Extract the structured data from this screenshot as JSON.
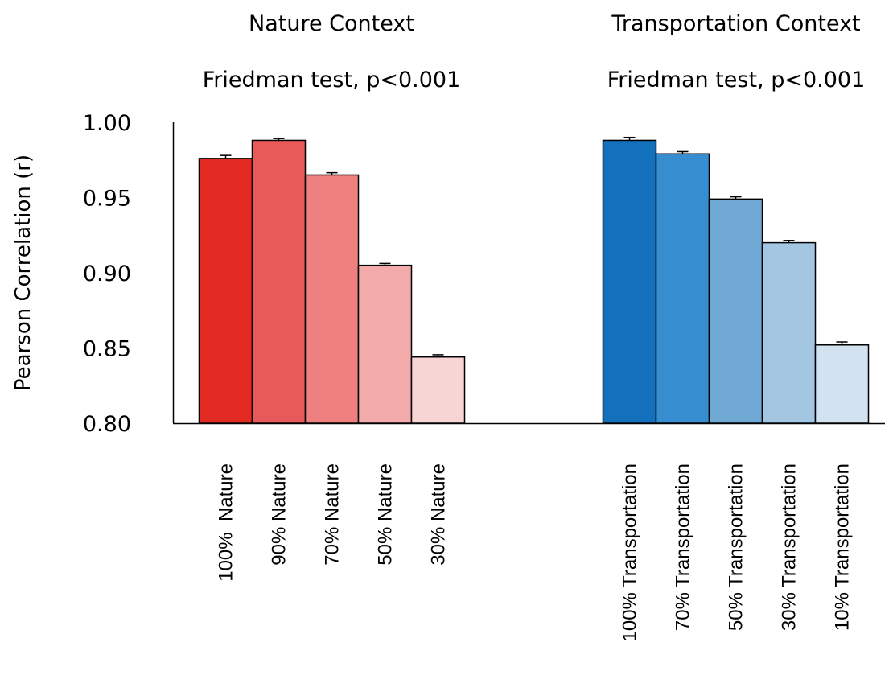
{
  "chart_data": {
    "type": "bar",
    "ylabel": "Pearson Correlation (r)",
    "ylim": [
      0.8,
      1.0
    ],
    "yticks": [
      "0.80",
      "0.85",
      "0.90",
      "0.95",
      "1.00"
    ],
    "ytick_values": [
      0.8,
      0.85,
      0.9,
      0.95,
      1.0
    ],
    "grid": false,
    "groups": [
      {
        "title": "Nature Context",
        "subtitle": "Friedman test, p<0.001",
        "categories": [
          "100%  Nature",
          "90% Nature",
          "70% Nature",
          "50% Nature",
          "30% Nature"
        ],
        "values": [
          0.976,
          0.988,
          0.965,
          0.905,
          0.844
        ],
        "errors": [
          0.002,
          0.0012,
          0.0015,
          0.0012,
          0.0015
        ],
        "colors": [
          "#e32a22",
          "#e85a59",
          "#ee8180",
          "#f3aaaa",
          "#f7d5d5"
        ]
      },
      {
        "title": "Transportation Context",
        "subtitle": "Friedman test, p<0.001",
        "categories": [
          "100% Transportation",
          "70% Transportation",
          "50% Transportation",
          "30% Transportation",
          "10% Transportation"
        ],
        "values": [
          0.988,
          0.979,
          0.949,
          0.92,
          0.852
        ],
        "errors": [
          0.002,
          0.0015,
          0.0015,
          0.0015,
          0.002
        ],
        "colors": [
          "#1270bd",
          "#368dcf",
          "#70a9d3",
          "#a3c6e3",
          "#d2e2f0"
        ]
      }
    ]
  }
}
